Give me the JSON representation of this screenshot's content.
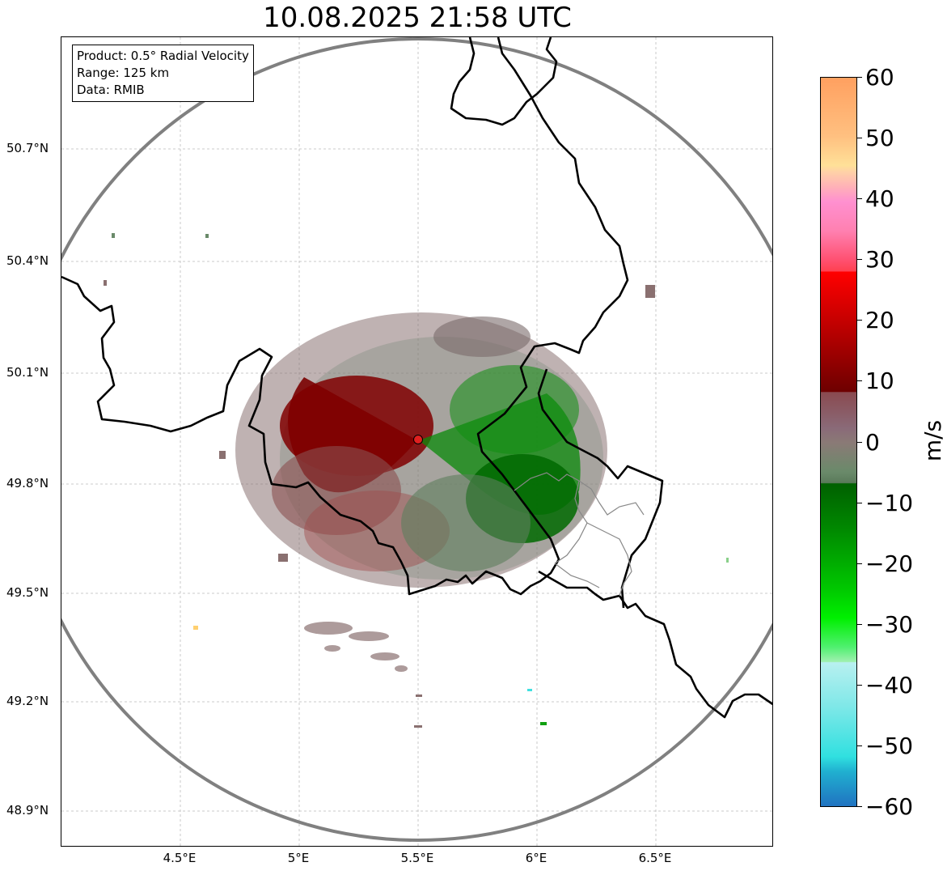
{
  "title": "10.08.2025 21:58 UTC",
  "info": {
    "product": "Product: 0.5° Radial Velocity",
    "range": "Range: 125 km",
    "data": "Data: RMIB"
  },
  "axes": {
    "lat_ticks": [
      "50.7°N",
      "50.4°N",
      "50.1°N",
      "49.8°N",
      "49.5°N",
      "49.2°N",
      "48.9°N"
    ],
    "lon_ticks": [
      "4.5°E",
      "5°E",
      "5.5°E",
      "6°E",
      "6.5°E"
    ]
  },
  "colorbar": {
    "label": "m/s",
    "ticks": [
      "60",
      "50",
      "40",
      "30",
      "20",
      "10",
      "0",
      "−10",
      "−20",
      "−30",
      "−40",
      "−50",
      "−60"
    ],
    "range": [
      -60,
      60
    ]
  },
  "colors": {
    "range_ring": "#808080",
    "border": "#000000",
    "radar_site": "#e02020"
  }
}
